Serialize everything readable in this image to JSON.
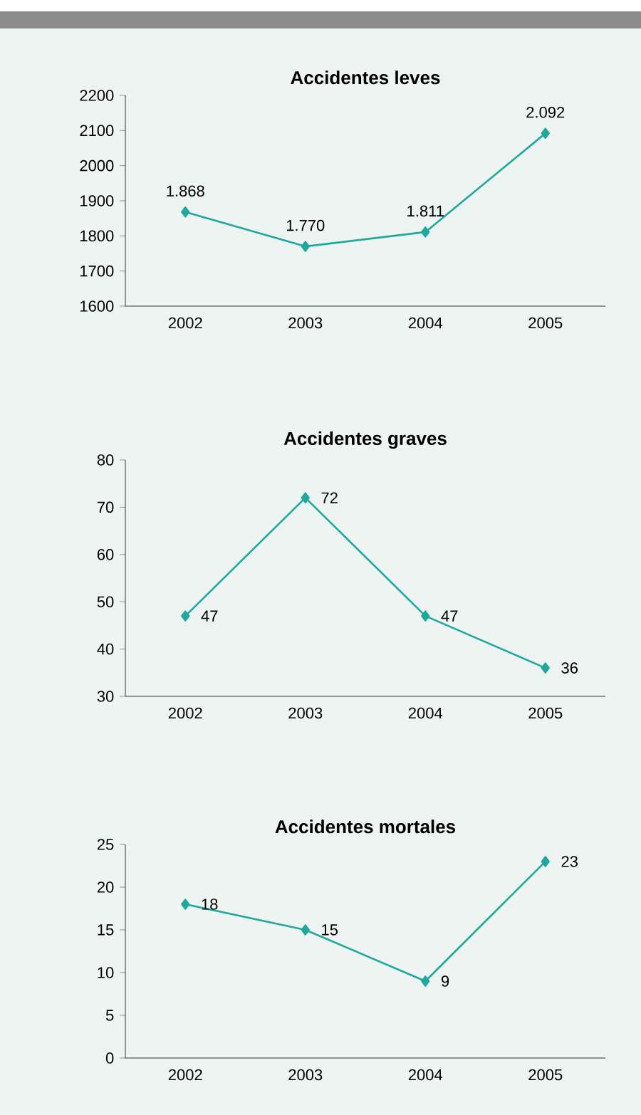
{
  "chart_data": [
    {
      "type": "line",
      "title": "Accidentes leves",
      "categories": [
        "2002",
        "2003",
        "2004",
        "2005"
      ],
      "values": [
        1868,
        1770,
        1811,
        2092
      ],
      "value_labels": [
        "1.868",
        "1.770",
        "1.811",
        "2.092"
      ],
      "color": "#1fa89c",
      "marker": "diamond",
      "ylim": [
        1600,
        2200
      ],
      "yticks": [
        1600,
        1700,
        1800,
        1900,
        2000,
        2100,
        2200
      ],
      "grid": false
    },
    {
      "type": "line",
      "title": "Accidentes graves",
      "categories": [
        "2002",
        "2003",
        "2004",
        "2005"
      ],
      "values": [
        47,
        72,
        47,
        36
      ],
      "value_labels": [
        "47",
        "72",
        "47",
        "36"
      ],
      "color": "#1fa89c",
      "marker": "diamond",
      "ylim": [
        30,
        80
      ],
      "yticks": [
        30,
        40,
        50,
        60,
        70,
        80
      ],
      "grid": false
    },
    {
      "type": "line",
      "title": "Accidentes mortales",
      "categories": [
        "2002",
        "2003",
        "2004",
        "2005"
      ],
      "values": [
        18,
        15,
        9,
        23
      ],
      "value_labels": [
        "18",
        "15",
        "9",
        "23"
      ],
      "color": "#1fa89c",
      "marker": "diamond",
      "ylim": [
        0,
        25
      ],
      "yticks": [
        0,
        5,
        10,
        15,
        20,
        25
      ],
      "grid": false
    }
  ]
}
